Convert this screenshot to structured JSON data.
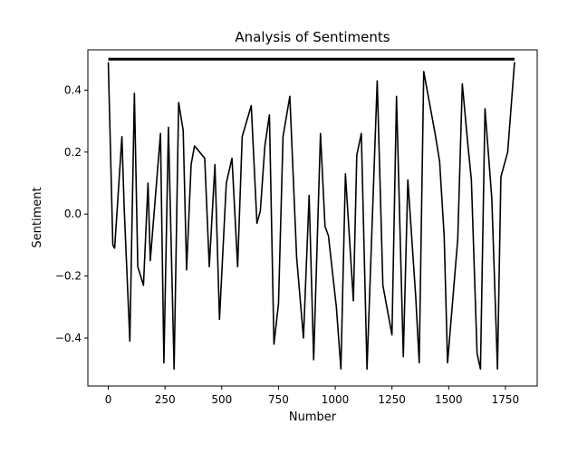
{
  "chart_data": {
    "type": "line",
    "title": "Analysis of Sentiments",
    "xlabel": "Number",
    "ylabel": "Sentiment",
    "xlim": [
      -90,
      1890
    ],
    "ylim": [
      -0.555,
      0.53
    ],
    "x_ticks": [
      0,
      250,
      500,
      750,
      1000,
      1250,
      1500,
      1750
    ],
    "y_ticks": [
      -0.4,
      -0.2,
      0.0,
      0.2,
      0.4
    ],
    "x_tick_labels": [
      "0",
      "250",
      "500",
      "750",
      "1000",
      "1250",
      "1500",
      "1750"
    ],
    "y_tick_labels": [
      "−0.4",
      "−0.2",
      "0.0",
      "0.2",
      "0.4"
    ],
    "grid": false,
    "legend": "none",
    "line_color": "#000000",
    "series": [
      {
        "x": [
          0,
          20,
          28,
          60,
          70,
          95,
          115,
          130,
          155,
          175,
          185,
          230,
          245,
          265,
          290,
          310,
          330,
          345,
          365,
          380,
          425,
          445,
          470,
          490,
          520,
          545,
          570,
          590,
          630,
          655,
          670,
          690,
          710,
          730,
          750,
          770,
          800,
          830,
          860,
          885,
          905,
          935,
          955,
          970,
          1005,
          1025,
          1045,
          1080,
          1095,
          1115,
          1140,
          1170,
          1185,
          1210,
          1250,
          1270,
          1300,
          1320,
          1355,
          1370,
          1390,
          1440,
          1460,
          1480,
          1495,
          1540,
          1560,
          1585,
          1600,
          1625,
          1640,
          1660,
          1690,
          1715,
          1730,
          1760,
          1790
        ],
        "y": [
          0.49,
          -0.1,
          -0.11,
          0.25,
          0.02,
          -0.41,
          0.39,
          -0.17,
          -0.23,
          0.1,
          -0.15,
          0.26,
          -0.48,
          0.28,
          -0.5,
          0.36,
          0.27,
          -0.18,
          0.16,
          0.22,
          0.18,
          -0.17,
          0.16,
          -0.34,
          0.1,
          0.18,
          -0.17,
          0.25,
          0.35,
          -0.03,
          0.01,
          0.22,
          0.32,
          -0.42,
          -0.29,
          0.25,
          0.38,
          -0.14,
          -0.4,
          0.06,
          -0.47,
          0.26,
          -0.04,
          -0.07,
          -0.3,
          -0.5,
          0.13,
          -0.28,
          0.19,
          0.26,
          -0.5,
          0.12,
          0.43,
          -0.23,
          -0.39,
          0.38,
          -0.46,
          0.11,
          -0.27,
          -0.48,
          0.46,
          0.26,
          0.17,
          -0.07,
          -0.48,
          -0.08,
          0.42,
          0.22,
          0.11,
          -0.45,
          -0.5,
          0.34,
          0.05,
          -0.5,
          0.12,
          0.2,
          0.49
        ]
      }
    ]
  }
}
